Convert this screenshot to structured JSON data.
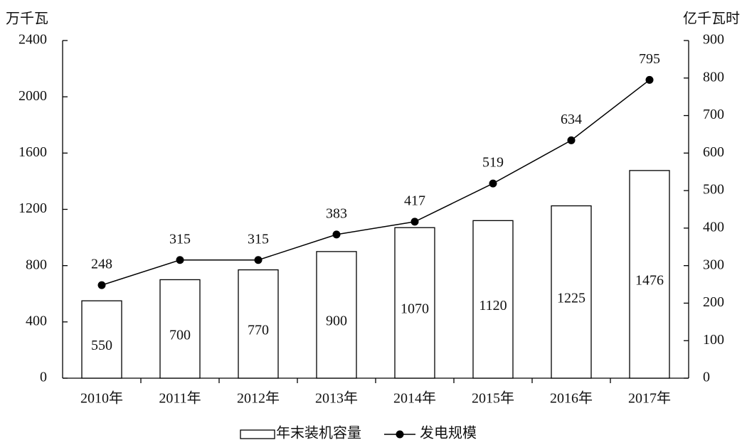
{
  "chart_data": {
    "type": "combo",
    "y_label": "万千瓦",
    "y2_label": "亿千瓦时",
    "categories": [
      "2010年",
      "2011年",
      "2012年",
      "2013年",
      "2014年",
      "2015年",
      "2016年",
      "2017年"
    ],
    "series": [
      {
        "name": "年末装机容量",
        "type": "bar",
        "axis": "y",
        "color": "#ffffff",
        "values": [
          550,
          700,
          770,
          900,
          1070,
          1120,
          1225,
          1476
        ]
      },
      {
        "name": "发电规模",
        "type": "line",
        "axis": "y2",
        "color": "#000000",
        "values": [
          248,
          315,
          315,
          383,
          417,
          519,
          634,
          795
        ]
      }
    ],
    "ylim": [
      0,
      2400
    ],
    "yticks": [
      0,
      400,
      800,
      1200,
      1600,
      2000,
      2400
    ],
    "y2lim": [
      0,
      900
    ],
    "y2ticks": [
      0,
      100,
      200,
      300,
      400,
      500,
      600,
      700,
      800,
      900
    ],
    "legend": "bottom",
    "grid": false
  }
}
